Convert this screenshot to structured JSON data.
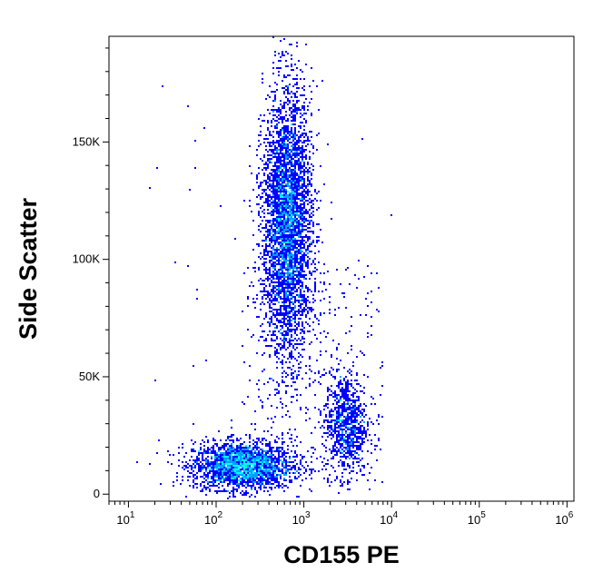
{
  "chart_data": {
    "type": "scatter",
    "subtype": "flow-cytometry-density-dot-plot",
    "title": "",
    "xlabel": "CD155 PE",
    "ylabel": "Side Scatter",
    "x_scale": "log",
    "xlim": [
      6,
      1200000
    ],
    "ylim": [
      -3000,
      195000
    ],
    "x_ticks": [
      {
        "value": 10,
        "base": "10",
        "exp": "1"
      },
      {
        "value": 100,
        "base": "10",
        "exp": "2"
      },
      {
        "value": 1000,
        "base": "10",
        "exp": "3"
      },
      {
        "value": 10000,
        "base": "10",
        "exp": "4"
      },
      {
        "value": 100000,
        "base": "10",
        "exp": "5"
      },
      {
        "value": 1000000,
        "base": "10",
        "exp": "6"
      }
    ],
    "y_ticks": [
      {
        "value": 0,
        "label": "0"
      },
      {
        "value": 50000,
        "label": "50K"
      },
      {
        "value": 100000,
        "label": "100K"
      },
      {
        "value": 150000,
        "label": "150K"
      }
    ],
    "grid": false,
    "legend": "none",
    "density_colors": [
      "#0000ff",
      "#00a0ff",
      "#00ffff",
      "#00ff80",
      "#ffff00",
      "#ff8000",
      "#ff0000"
    ],
    "populations": [
      {
        "x_center": 200,
        "y_center": 12000,
        "x_spread_decades": 0.28,
        "y_spread": 5000,
        "count": 2600
      },
      {
        "x_center": 650,
        "y_center": 115000,
        "x_spread_decades": 0.14,
        "y_spread": 28000,
        "count": 4200
      },
      {
        "x_center": 3000,
        "y_center": 30000,
        "x_spread_decades": 0.12,
        "y_spread": 11000,
        "count": 900
      }
    ]
  }
}
